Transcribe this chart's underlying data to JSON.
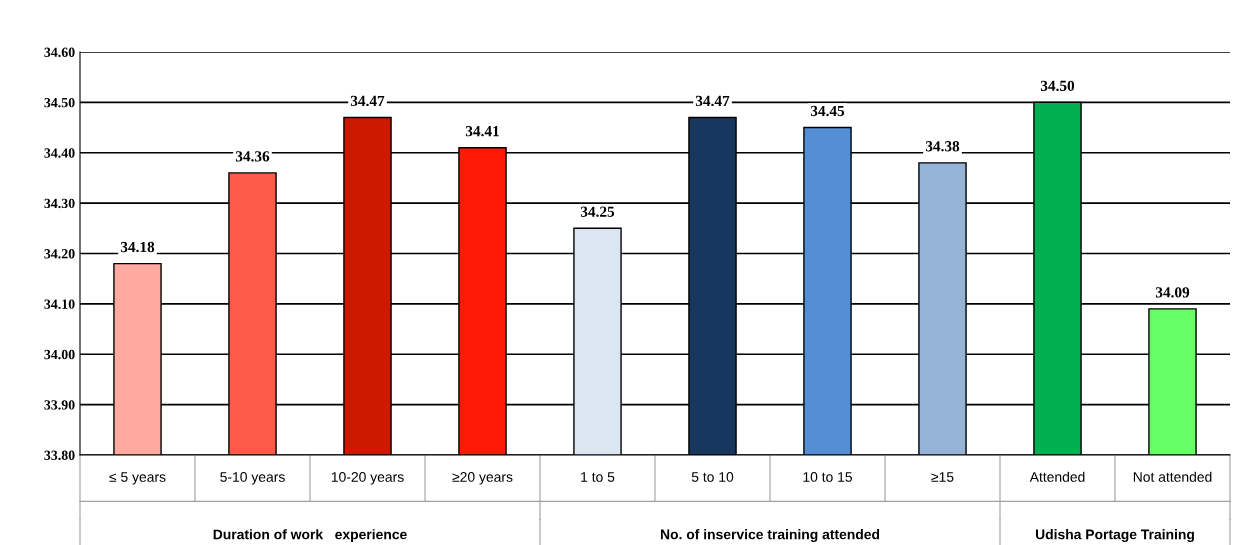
{
  "chart_data": {
    "type": "bar",
    "categories": [
      "≤ 5 years",
      "5-10 years",
      "10-20 years",
      "≥20 years",
      "1 to 5",
      "5 to 10",
      "10 to 15",
      "≥15",
      "Attended",
      "Not attended"
    ],
    "values": [
      34.18,
      34.36,
      34.47,
      34.41,
      34.25,
      34.47,
      34.45,
      34.38,
      34.5,
      34.09
    ],
    "value_labels": [
      "34.18",
      "34.36",
      "34.47",
      "34.41",
      "34.25",
      "34.47",
      "34.45",
      "34.38",
      "34.50",
      "34.09"
    ],
    "colors": [
      "#ffaaa0",
      "#ff5a4a",
      "#cc1a00",
      "#ff1a08",
      "#dce6f2",
      "#17375e",
      "#558ed5",
      "#95b3d7",
      "#00b050",
      "#66ff66"
    ],
    "ylim": [
      33.8,
      34.6
    ],
    "yticks": [
      {
        "value": 33.8,
        "label": "33.80"
      },
      {
        "value": 33.9,
        "label": "33.90"
      },
      {
        "value": 34.0,
        "label": "34.00"
      },
      {
        "value": 34.1,
        "label": "34.10"
      },
      {
        "value": 34.2,
        "label": "34.20"
      },
      {
        "value": 34.3,
        "label": "34.30"
      },
      {
        "value": 34.4,
        "label": "34.40"
      },
      {
        "value": 34.5,
        "label": "34.50"
      },
      {
        "value": 34.6,
        "label": "34.60"
      }
    ],
    "grid": "y",
    "annotations": [
      "Duration of work   experience",
      "No. of inservice training attended",
      "Udisha Portage Training"
    ]
  }
}
